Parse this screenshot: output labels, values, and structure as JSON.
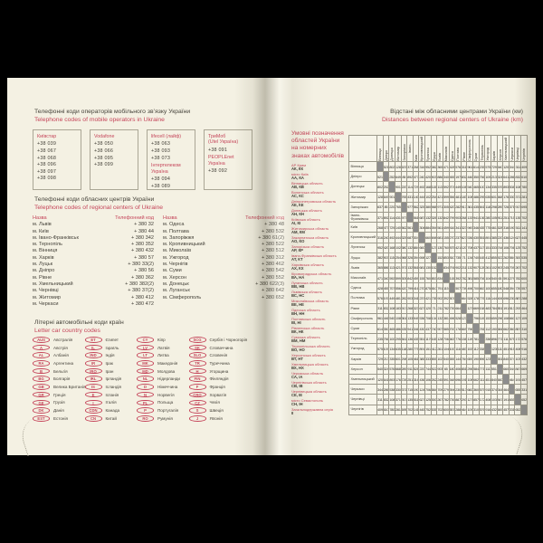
{
  "colors": {
    "accent_red": "#c5455a",
    "page_background": "#f4f1e3",
    "text_dark": "#45423a",
    "table_grid": "#9b988a",
    "diagonal_cell": "#8d8d8d",
    "photo_background": "#000000"
  },
  "left_page": {
    "heading_mobile": {
      "uk": "Телефонні коди операторів мобільного зв’язку України",
      "en": "Telephone codes of mobile operators in Ukraine"
    },
    "mobile_operators": [
      [
        {
          "title": "Київстар",
          "numbers": [
            "+38 039",
            "+38 067",
            "+38 068",
            "+38 096",
            "+38 097",
            "+38 098"
          ]
        }
      ],
      [
        {
          "title": "Vodafone",
          "numbers": [
            "+38 050",
            "+38 066",
            "+38 095",
            "+38 099"
          ]
        }
      ],
      [
        {
          "title": "lifecell (лайф)",
          "numbers": [
            "+38 063",
            "+38 093",
            "+38 073"
          ]
        },
        {
          "title": "Інтертелеком Україна",
          "numbers": [
            "+38 094",
            "+38 089"
          ]
        }
      ],
      [
        {
          "title": "ТриМоб\n(Utel Україна)",
          "numbers": [
            "+38 091"
          ]
        },
        {
          "title": "PEOPLEnet\nУкраїна",
          "numbers": [
            "+38 092"
          ]
        }
      ]
    ],
    "heading_regional": {
      "uk": "Телефонні коди обласних центрів України",
      "en": "Telephone codes of regional centers of Ukraine"
    },
    "regional_codes": {
      "header_name": "Назва",
      "header_code": "Телефонний код",
      "left": [
        {
          "city": "м. Львів",
          "code": "+ 380 32"
        },
        {
          "city": "м. Київ",
          "code": "+ 380 44"
        },
        {
          "city": "м. Івано-Франківськ",
          "code": "+ 380 342"
        },
        {
          "city": "м. Тернопіль",
          "code": "+ 380 352"
        },
        {
          "city": "м. Вінниця",
          "code": "+ 380 432"
        },
        {
          "city": "м. Харків",
          "code": "+ 380 57"
        },
        {
          "city": "м. Луцьк",
          "code": "+ 380 33(2)"
        },
        {
          "city": "м. Дніпро",
          "code": "+ 380 56"
        },
        {
          "city": "м. Рівне",
          "code": "+ 380 362"
        },
        {
          "city": "м. Хмельницький",
          "code": "+ 380 382(2)"
        },
        {
          "city": "м. Чернівці",
          "code": "+ 380 37(2)"
        },
        {
          "city": "м. Житомир",
          "code": "+ 380 412"
        },
        {
          "city": "м. Черкаси",
          "code": "+ 380 472"
        }
      ],
      "right": [
        {
          "city": "м. Одеса",
          "code": "+ 380 48"
        },
        {
          "city": "м. Полтава",
          "code": "+ 380 532"
        },
        {
          "city": "м. Запоріжжя",
          "code": "+ 380 61(2)"
        },
        {
          "city": "м. Кропивницький",
          "code": "+ 380 522"
        },
        {
          "city": "м. Миколаїв",
          "code": "+ 380 512"
        },
        {
          "city": "м. Ужгород",
          "code": "+ 380 312"
        },
        {
          "city": "м. Чернігів",
          "code": "+ 380 462"
        },
        {
          "city": "м. Суми",
          "code": "+ 380 542"
        },
        {
          "city": "м. Херсон",
          "code": "+ 380 552"
        },
        {
          "city": "м. Донецьк",
          "code": "+ 380 622(3)"
        },
        {
          "city": "м. Луганськ",
          "code": "+ 380 642"
        },
        {
          "city": "м. Сімферополь",
          "code": "+ 380 652"
        }
      ]
    },
    "heading_car": {
      "uk": "Літерні автомобільні коди країн",
      "en": "Letter car country codes"
    },
    "car_codes": [
      [
        {
          "code": "AUS",
          "country": "Австралія"
        },
        {
          "code": "A",
          "country": "Австрія"
        },
        {
          "code": "AL",
          "country": "Албанія"
        },
        {
          "code": "RA",
          "country": "Аргентина"
        },
        {
          "code": "B",
          "country": "Бельгія"
        },
        {
          "code": "BG",
          "country": "Болгарія"
        },
        {
          "code": "GB",
          "country": "Велика Британія"
        },
        {
          "code": "GR",
          "country": "Греція"
        },
        {
          "code": "GE",
          "country": "Грузія"
        },
        {
          "code": "DK",
          "country": "Данія"
        },
        {
          "code": "EST",
          "country": "Естонія"
        }
      ],
      [
        {
          "code": "ET",
          "country": "Єгипет"
        },
        {
          "code": "IL",
          "country": "Ізраїль"
        },
        {
          "code": "IND",
          "country": "Індія"
        },
        {
          "code": "IR",
          "country": "Ірак"
        },
        {
          "code": "IRQ",
          "country": "Іран"
        },
        {
          "code": "IRL",
          "country": "Ірландія"
        },
        {
          "code": "IS",
          "country": "Ісландія"
        },
        {
          "code": "E",
          "country": "Іспанія"
        },
        {
          "code": "I",
          "country": "Італія"
        },
        {
          "code": "CDN",
          "country": "Канада"
        },
        {
          "code": "CN",
          "country": "Китай"
        }
      ],
      [
        {
          "code": "CY",
          "country": "Кіпр"
        },
        {
          "code": "LV",
          "country": "Латвія"
        },
        {
          "code": "LT",
          "country": "Литва"
        },
        {
          "code": "MK",
          "country": "Македонія"
        },
        {
          "code": "MD",
          "country": "Молдова"
        },
        {
          "code": "NL",
          "country": "Нідерланди"
        },
        {
          "code": "D",
          "country": "Німеччина"
        },
        {
          "code": "N",
          "country": "Норвегія"
        },
        {
          "code": "PL",
          "country": "Польща"
        },
        {
          "code": "P",
          "country": "Португалія"
        },
        {
          "code": "RO",
          "country": "Румунія"
        }
      ],
      [
        {
          "code": "SCG",
          "country": "Сербія і Чорногорія"
        },
        {
          "code": "SK",
          "country": "Словаччина"
        },
        {
          "code": "SLO",
          "country": "Словенія"
        },
        {
          "code": "TR",
          "country": "Туреччина"
        },
        {
          "code": "H",
          "country": "Угорщина"
        },
        {
          "code": "FIN",
          "country": "Фінляндія"
        },
        {
          "code": "F",
          "country": "Франція"
        },
        {
          "code": "CRO",
          "country": "Хорватія"
        },
        {
          "code": "CZ",
          "country": "Чехія"
        },
        {
          "code": "S",
          "country": "Швеція"
        },
        {
          "code": "J",
          "country": "Японія"
        }
      ]
    ]
  },
  "right_page": {
    "heading": {
      "uk": "Відстані між обласними центрами України (км)",
      "en": "Distances between regional centers of Ukraine (km)"
    },
    "plate_legend": {
      "title": "Умовні позначення областей України на номерних знаках автомобілів",
      "items": [
        {
          "region": "АР Крим",
          "codes": "АК, КК"
        },
        {
          "region": "місто Київ",
          "codes": "АА, КА"
        },
        {
          "region": "Вінницька область",
          "codes": "АВ, КВ"
        },
        {
          "region": "Волинська область",
          "codes": "АС, КС"
        },
        {
          "region": "Дніпропетровська область",
          "codes": "АЕ, КЕ"
        },
        {
          "region": "Донецька область",
          "codes": "АН, КН"
        },
        {
          "region": "Київська область",
          "codes": "АІ, КІ"
        },
        {
          "region": "Житомирська область",
          "codes": "АМ, КМ"
        },
        {
          "region": "Закарпатська область",
          "codes": "АО, КО"
        },
        {
          "region": "Запорізька область",
          "codes": "АР, КР"
        },
        {
          "region": "Івано-Франківська область",
          "codes": "АТ, КТ"
        },
        {
          "region": "Харківська область",
          "codes": "АХ, КХ"
        },
        {
          "region": "Кіровоградська область",
          "codes": "ВА, НА"
        },
        {
          "region": "Луганська область",
          "codes": "ВВ, НВ"
        },
        {
          "region": "Львівська область",
          "codes": "ВС, НС"
        },
        {
          "region": "Миколаївська область",
          "codes": "ВЕ, НЕ"
        },
        {
          "region": "Одеська область",
          "codes": "ВН, НН"
        },
        {
          "region": "Полтавська область",
          "codes": "ВІ, НІ"
        },
        {
          "region": "Рівненська область",
          "codes": "ВК, НК"
        },
        {
          "region": "Сумська область",
          "codes": "ВМ, НМ"
        },
        {
          "region": "Тернопільська область",
          "codes": "ВО, НО"
        },
        {
          "region": "Херсонська область",
          "codes": "ВТ, НТ"
        },
        {
          "region": "Хмельницька область",
          "codes": "ВХ, НХ"
        },
        {
          "region": "Черкаська область",
          "codes": "СА, ІА"
        },
        {
          "region": "Чернігівська область",
          "codes": "СВ, ІВ"
        },
        {
          "region": "Чернівецька область",
          "codes": "СЕ, ІЕ"
        },
        {
          "region": "місто Севастополь",
          "codes": "СН, ІН"
        },
        {
          "region": "Загальнодержавна серія",
          "codes": "ІІ"
        }
      ]
    }
  },
  "chart_data": {
    "type": "table",
    "title": "Відстані між обласними центрами України (км)",
    "cities": [
      "Вінниця",
      "Дніпро",
      "Донецьк",
      "Житомир",
      "Запоріжжя",
      "Івано-Франківськ",
      "Київ",
      "Кропивницький",
      "Луганськ",
      "Луцьк",
      "Львів",
      "Миколаїв",
      "Одеса",
      "Полтава",
      "Рівне",
      "Сімферополь",
      "Суми",
      "Тернопіль",
      "Ужгород",
      "Харків",
      "Херсон",
      "Хмельницький",
      "Черкаси",
      "Чернівці",
      "Чернігів"
    ],
    "distances_km": [
      [
        null,
        521,
        802,
        128,
        637,
        371,
        268,
        316,
        952,
        382,
        365,
        471,
        428,
        576,
        311,
        961,
        614,
        235,
        575,
        729,
        540,
        120,
        344,
        311,
        409
      ],
      [
        521,
        null,
        252,
        649,
        85,
        892,
        477,
        240,
        420,
        903,
        886,
        340,
        455,
        197,
        832,
        446,
        350,
        756,
        1096,
        213,
        324,
        641,
        286,
        832,
        610
      ],
      [
        802,
        252,
        null,
        901,
        220,
        1144,
        729,
        492,
        168,
        1155,
        1138,
        592,
        707,
        449,
        1084,
        540,
        465,
        1008,
        1348,
        335,
        576,
        893,
        538,
        1084,
        780
      ],
      [
        128,
        649,
        901,
        null,
        765,
        431,
        140,
        444,
        1024,
        254,
        421,
        599,
        556,
        481,
        183,
        1089,
        486,
        295,
        635,
        601,
        668,
        176,
        330,
        371,
        281
      ],
      [
        637,
        85,
        220,
        765,
        null,
        977,
        562,
        325,
        380,
        988,
        971,
        305,
        420,
        282,
        917,
        361,
        435,
        841,
        1181,
        298,
        289,
        726,
        371,
        917,
        695
      ],
      [
        371,
        892,
        1144,
        431,
        977,
        null,
        561,
        687,
        1323,
        326,
        132,
        842,
        799,
        903,
        268,
        1332,
        941,
        136,
        280,
        1056,
        911,
        251,
        715,
        135,
        702
      ],
      [
        268,
        477,
        729,
        140,
        562,
        561,
        null,
        304,
        884,
        394,
        561,
        459,
        416,
        341,
        323,
        949,
        346,
        435,
        775,
        461,
        528,
        316,
        190,
        511,
        141
      ],
      [
        316,
        240,
        492,
        444,
        325,
        687,
        304,
        null,
        660,
        698,
        681,
        155,
        270,
        237,
        627,
        536,
        430,
        551,
        891,
        385,
        220,
        436,
        124,
        627,
        445
      ],
      [
        952,
        420,
        168,
        1024,
        380,
        1323,
        884,
        660,
        null,
        1278,
        1306,
        760,
        875,
        421,
        1207,
        708,
        437,
        1176,
        1516,
        333,
        744,
        1061,
        706,
        1252,
        752
      ],
      [
        382,
        903,
        1155,
        254,
        988,
        326,
        394,
        698,
        1278,
        null,
        152,
        853,
        810,
        735,
        71,
        1343,
        740,
        165,
        412,
        855,
        922,
        262,
        584,
        300,
        535
      ],
      [
        365,
        886,
        1138,
        421,
        971,
        132,
        561,
        681,
        1306,
        152,
        null,
        834,
        791,
        902,
        211,
        1324,
        907,
        128,
        261,
        1022,
        903,
        245,
        709,
        267,
        702
      ],
      [
        471,
        340,
        592,
        599,
        305,
        842,
        459,
        155,
        760,
        853,
        834,
        null,
        115,
        392,
        782,
        381,
        585,
        706,
        1046,
        540,
        65,
        591,
        279,
        782,
        600
      ],
      [
        428,
        455,
        707,
        556,
        420,
        799,
        416,
        270,
        875,
        810,
        791,
        115,
        null,
        507,
        739,
        496,
        700,
        663,
        1003,
        655,
        180,
        548,
        394,
        739,
        557
      ],
      [
        576,
        197,
        449,
        481,
        282,
        903,
        341,
        237,
        421,
        735,
        902,
        392,
        507,
        null,
        664,
        528,
        178,
        776,
        1116,
        144,
        406,
        696,
        230,
        887,
        288
      ],
      [
        311,
        832,
        1084,
        183,
        917,
        268,
        323,
        627,
        1207,
        71,
        211,
        782,
        739,
        664,
        null,
        1272,
        669,
        158,
        483,
        784,
        851,
        191,
        513,
        293,
        464
      ],
      [
        961,
        446,
        540,
        1089,
        361,
        1332,
        949,
        536,
        708,
        1343,
        1324,
        381,
        496,
        528,
        1272,
        null,
        796,
        1196,
        1536,
        659,
        296,
        1081,
        660,
        1272,
        1090
      ],
      [
        614,
        350,
        465,
        486,
        435,
        941,
        346,
        430,
        437,
        740,
        907,
        585,
        700,
        178,
        669,
        796,
        null,
        781,
        1121,
        190,
        584,
        662,
        360,
        857,
        310
      ],
      [
        235,
        756,
        1008,
        295,
        841,
        136,
        435,
        551,
        1176,
        165,
        128,
        706,
        663,
        776,
        158,
        1196,
        781,
        null,
        338,
        896,
        771,
        111,
        575,
        172,
        576
      ],
      [
        575,
        1096,
        1348,
        635,
        1181,
        280,
        775,
        891,
        1516,
        412,
        261,
        1046,
        1003,
        1116,
        483,
        1536,
        1121,
        338,
        null,
        1236,
        1111,
        451,
        915,
        408,
        916
      ],
      [
        729,
        213,
        335,
        601,
        298,
        1056,
        461,
        385,
        333,
        855,
        1022,
        540,
        655,
        144,
        784,
        659,
        190,
        896,
        1236,
        null,
        551,
        840,
        374,
        1031,
        432
      ],
      [
        540,
        324,
        576,
        668,
        289,
        911,
        528,
        220,
        744,
        922,
        903,
        65,
        180,
        406,
        851,
        296,
        584,
        771,
        1111,
        551,
        null,
        660,
        344,
        847,
        669
      ],
      [
        120,
        641,
        893,
        176,
        726,
        251,
        316,
        436,
        1061,
        262,
        245,
        591,
        548,
        696,
        191,
        1081,
        662,
        111,
        451,
        840,
        660,
        null,
        464,
        191,
        457
      ],
      [
        344,
        286,
        538,
        330,
        371,
        715,
        190,
        124,
        706,
        584,
        709,
        279,
        394,
        230,
        513,
        660,
        360,
        575,
        915,
        374,
        344,
        464,
        null,
        655,
        331
      ],
      [
        311,
        832,
        1084,
        371,
        917,
        135,
        511,
        627,
        1252,
        300,
        267,
        782,
        739,
        887,
        293,
        1272,
        857,
        172,
        408,
        1031,
        847,
        191,
        655,
        null,
        652
      ],
      [
        409,
        610,
        780,
        281,
        695,
        702,
        141,
        445,
        752,
        535,
        702,
        600,
        557,
        288,
        464,
        1090,
        310,
        576,
        916,
        432,
        669,
        457,
        331,
        652,
        null
      ]
    ]
  }
}
